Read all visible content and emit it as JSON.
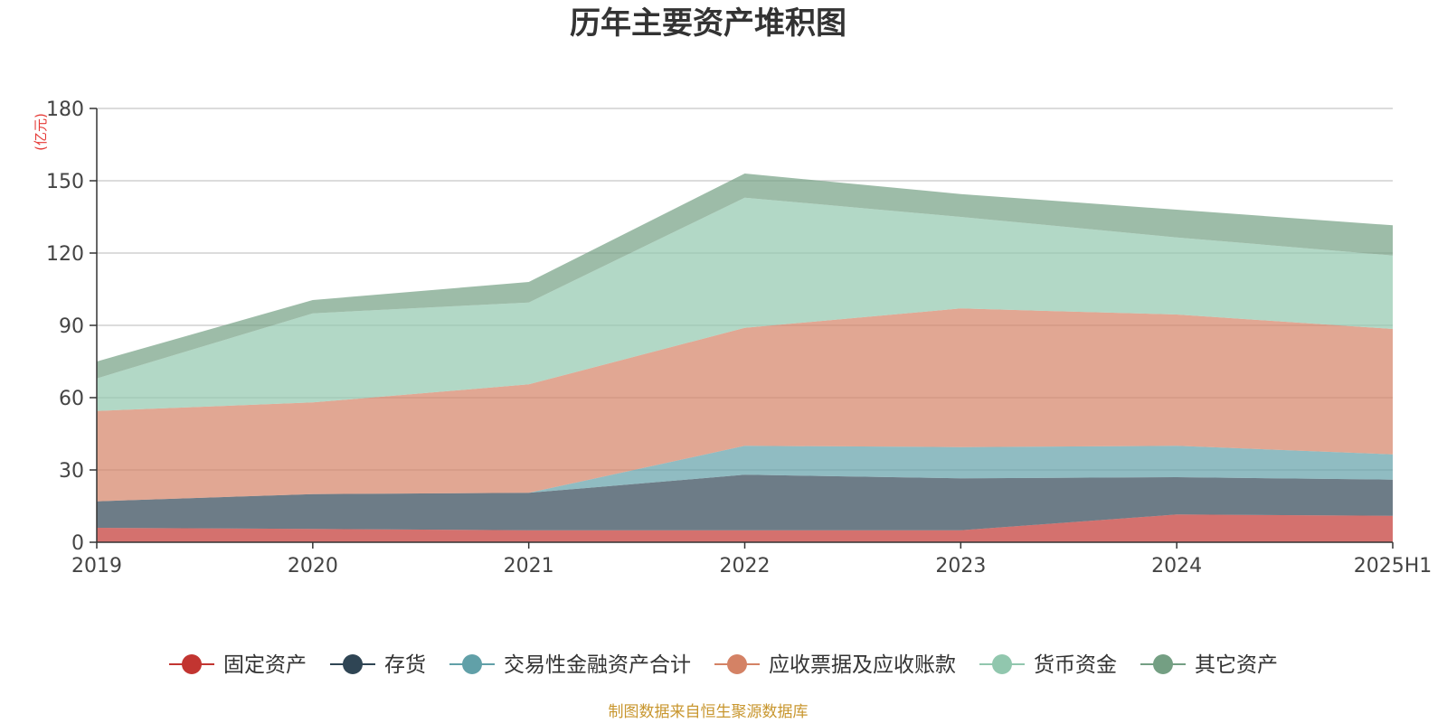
{
  "chart_data": {
    "type": "area",
    "stacked": true,
    "title": "历年主要资产堆积图",
    "unit_label": "(亿元)",
    "categories": [
      "2019",
      "2020",
      "2021",
      "2022",
      "2023",
      "2024",
      "2025H1"
    ],
    "ylim": [
      0,
      180
    ],
    "yticks": [
      0,
      30,
      60,
      90,
      120,
      150,
      180
    ],
    "grid": true,
    "legend_position": "bottom",
    "series": [
      {
        "name": "固定资产",
        "color": "#c23531",
        "values": [
          6.0,
          5.5,
          5.0,
          5.0,
          5.0,
          11.5,
          11.0
        ]
      },
      {
        "name": "存货",
        "color": "#2f4554",
        "values": [
          11.0,
          14.5,
          15.5,
          23.0,
          21.5,
          15.5,
          15.0
        ]
      },
      {
        "name": "交易性金融资产合计",
        "color": "#61a0a8",
        "values": [
          0.0,
          0.0,
          0.0,
          12.0,
          13.0,
          13.0,
          10.5
        ]
      },
      {
        "name": "应收票据及应收账款",
        "color": "#d48265",
        "values": [
          37.5,
          38.0,
          45.0,
          49.0,
          57.5,
          54.5,
          52.0
        ]
      },
      {
        "name": "货币资金",
        "color": "#91c7ae",
        "values": [
          13.5,
          37.0,
          34.0,
          54.0,
          38.0,
          32.0,
          30.5
        ]
      },
      {
        "name": "其它资产",
        "color": "#749f83",
        "values": [
          7.0,
          5.5,
          8.5,
          10.0,
          9.5,
          11.5,
          12.5
        ]
      }
    ],
    "source_note": "制图数据来自恒生聚源数据库"
  }
}
